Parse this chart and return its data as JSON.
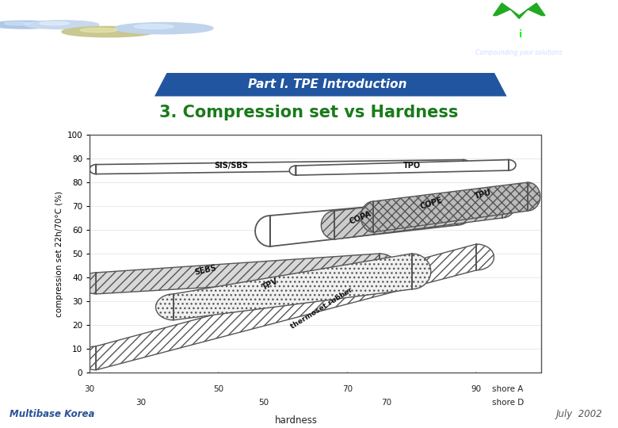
{
  "bg_color": "#ffffff",
  "top_bar_color": "#2255a0",
  "header_bar_color": "#2255a0",
  "header_text": "Part I. TPE Introduction",
  "header_text_color": "#ffffff",
  "title_text": "3. Compression set vs Hardness",
  "title_color": "#1a7a1a",
  "footer_left": "Multibase Korea",
  "footer_right": "July  2002",
  "footer_color": "#2a5296",
  "ylabel": "compression set 22h/70°C (%)",
  "xlabel": "hardness",
  "ylim": [
    0,
    100
  ],
  "yticks": [
    0,
    10,
    20,
    30,
    40,
    50,
    60,
    70,
    80,
    90,
    100
  ],
  "shore_a_ticks": [
    "30",
    "50",
    "70",
    "90"
  ],
  "shore_d_ticks": [
    "30",
    "50",
    "70"
  ],
  "plot_bg": "#ffffff"
}
